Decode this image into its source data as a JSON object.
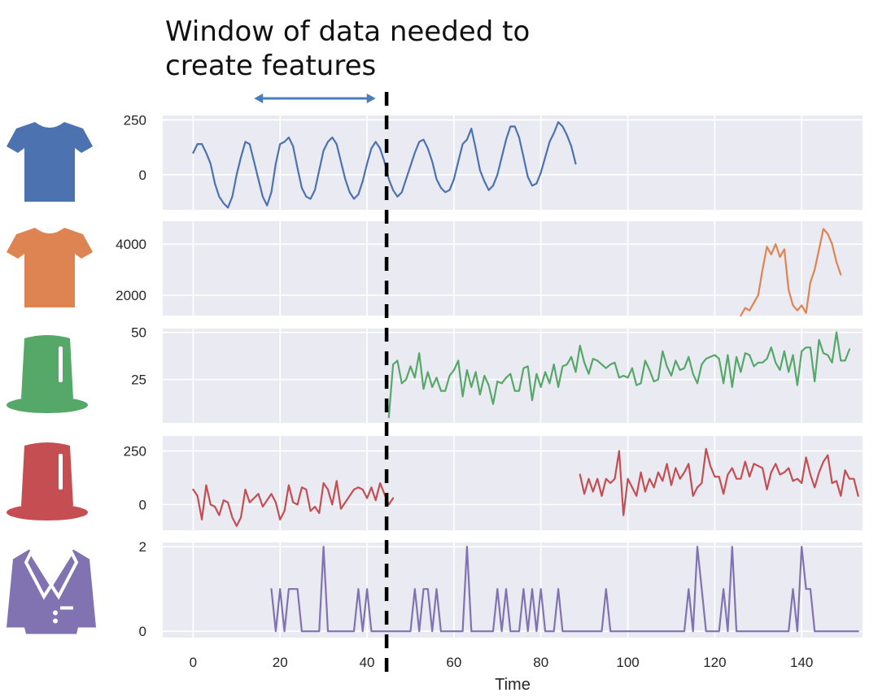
{
  "annotation": {
    "title_line1": "Window of data needed to",
    "title_line2": "create features"
  },
  "chart_data": {
    "type": "line",
    "xlabel": "Time",
    "xlim": [
      -7,
      154
    ],
    "xticks": [
      0,
      20,
      40,
      60,
      80,
      100,
      120,
      140
    ],
    "window": {
      "from": 14,
      "to": 42,
      "cutoff": 44.5
    },
    "panels": [
      {
        "icon": "tshirt-icon",
        "color": "#4c72b0",
        "ylim": [
          -160,
          270
        ],
        "yticks": [
          0,
          250
        ],
        "segments": [
          {
            "x0": 0,
            "values": [
              100,
              140,
              140,
              100,
              50,
              -40,
              -100,
              -130,
              -150,
              -100,
              0,
              80,
              150,
              140,
              60,
              -20,
              -100,
              -140,
              -80,
              50,
              140,
              150,
              170,
              130,
              30,
              -60,
              -100,
              -110,
              -70,
              20,
              110,
              150,
              170,
              140,
              60,
              -20,
              -80,
              -110,
              -90,
              -30,
              50,
              120,
              150,
              120,
              60,
              -20,
              -70,
              -100,
              -80,
              -20,
              40,
              100,
              150,
              160,
              120,
              60,
              -20,
              -60,
              -80,
              -70,
              -20,
              60,
              140,
              160,
              210,
              120,
              20,
              -30,
              -70,
              -50,
              0,
              80,
              160,
              220,
              220,
              170,
              80,
              -10,
              -50,
              -40,
              10,
              80,
              150,
              190,
              240,
              220,
              180,
              130,
              50
            ]
          }
        ]
      },
      {
        "icon": "tshirt-icon",
        "color": "#dd8452",
        "ylim": [
          1200,
          4900
        ],
        "yticks": [
          2000,
          4000
        ],
        "segments": [
          {
            "x0": 126,
            "values": [
              1200,
              1500,
              1400,
              1700,
              2000,
              3000,
              3900,
              3600,
              4000,
              3500,
              3800,
              2200,
              1600,
              1400,
              1600,
              1300,
              2500,
              3000,
              3800,
              4600,
              4400,
              4000,
              3300,
              2800
            ]
          }
        ]
      },
      {
        "icon": "top-hat-icon",
        "color": "#55a868",
        "ylim": [
          2,
          52
        ],
        "yticks": [
          25,
          50
        ],
        "segments": [
          {
            "x0": 45,
            "values": [
              5,
              33,
              35,
              23,
              25,
              32,
              26,
              39,
              20,
              29,
              21,
              26,
              19,
              19,
              27,
              30,
              35,
              16,
              30,
              21,
              29,
              17,
              27,
              22,
              12,
              24,
              23,
              26,
              28,
              19,
              19,
              31,
              32,
              14,
              28,
              21,
              29,
              23,
              33,
              21,
              32,
              33,
              37,
              29,
              43,
              34,
              28,
              36,
              35,
              33,
              31,
              33,
              34,
              26,
              27,
              26,
              31,
              22,
              23,
              35,
              30,
              24,
              25,
              40,
              32,
              27,
              35,
              30,
              31,
              37,
              28,
              23,
              33,
              36,
              37,
              38,
              36,
              23,
              38,
              21,
              37,
              29,
              39,
              38,
              32,
              34,
              34,
              36,
              42,
              34,
              30,
              40,
              29,
              38,
              22,
              40,
              42,
              42,
              24,
              46,
              39,
              38,
              34,
              50,
              35,
              35,
              41
            ]
          }
        ]
      },
      {
        "icon": "top-hat-icon",
        "color": "#c44e52",
        "ylim": [
          -120,
          320
        ],
        "yticks": [
          0,
          250
        ],
        "segments": [
          {
            "x0": 0,
            "values": [
              70,
              40,
              -70,
              90,
              0,
              -10,
              -50,
              20,
              10,
              -60,
              -100,
              -60,
              70,
              10,
              30,
              50,
              -10,
              20,
              50,
              10,
              -70,
              -30,
              90,
              10,
              0,
              80,
              70,
              -30,
              -10,
              -40,
              100,
              70,
              0,
              110,
              -20,
              10,
              40,
              70,
              80,
              70,
              30,
              80,
              20,
              100,
              50,
              0,
              30
            ]
          },
          {
            "x0": 89,
            "values": [
              140,
              50,
              120,
              60,
              120,
              40,
              120,
              100,
              120,
              250,
              -50,
              120,
              80,
              40,
              150,
              60,
              120,
              80,
              150,
              110,
              190,
              90,
              170,
              120,
              150,
              190,
              40,
              80,
              100,
              260,
              180,
              130,
              130,
              50,
              140,
              170,
              120,
              120,
              200,
              130,
              190,
              180,
              170,
              70,
              150,
              190,
              140,
              150,
              170,
              110,
              120,
              100,
              220,
              140,
              80,
              150,
              200,
              230,
              100,
              110,
              40,
              160,
              120,
              120,
              40
            ]
          }
        ]
      },
      {
        "icon": "blazer-icon",
        "color": "#8172b2",
        "ylim": [
          -0.15,
          2.1
        ],
        "yticks": [
          0,
          2
        ],
        "segments": [
          {
            "x0": 18,
            "values": [
              1,
              0,
              1,
              0,
              1,
              1,
              1,
              0,
              0,
              0,
              0,
              0,
              2,
              0,
              0,
              0,
              0,
              0,
              0,
              0,
              1,
              0,
              1,
              0,
              0,
              0,
              0,
              0,
              0,
              0,
              0,
              0,
              0,
              1,
              0,
              1,
              1,
              0,
              1,
              0,
              0,
              0,
              0,
              0,
              0,
              2,
              0,
              0,
              0,
              0,
              0,
              0,
              1,
              0,
              1,
              0,
              0,
              0,
              1,
              0,
              1,
              0,
              1,
              0,
              0,
              0,
              1,
              0,
              0,
              0,
              0,
              0,
              0,
              0,
              0,
              0,
              0,
              1,
              0,
              0,
              0,
              0,
              0,
              0,
              0,
              0,
              0,
              0,
              0,
              0,
              0,
              0,
              0,
              0,
              0,
              0,
              1,
              0,
              2,
              1,
              0,
              0,
              0,
              0,
              1,
              0,
              2,
              0,
              0,
              0,
              0,
              0,
              0,
              0,
              0,
              0,
              0,
              0,
              0,
              0,
              1,
              0,
              2,
              1,
              1,
              0,
              0,
              0,
              0,
              0,
              0,
              0,
              0,
              0,
              0,
              0
            ]
          }
        ]
      }
    ]
  }
}
